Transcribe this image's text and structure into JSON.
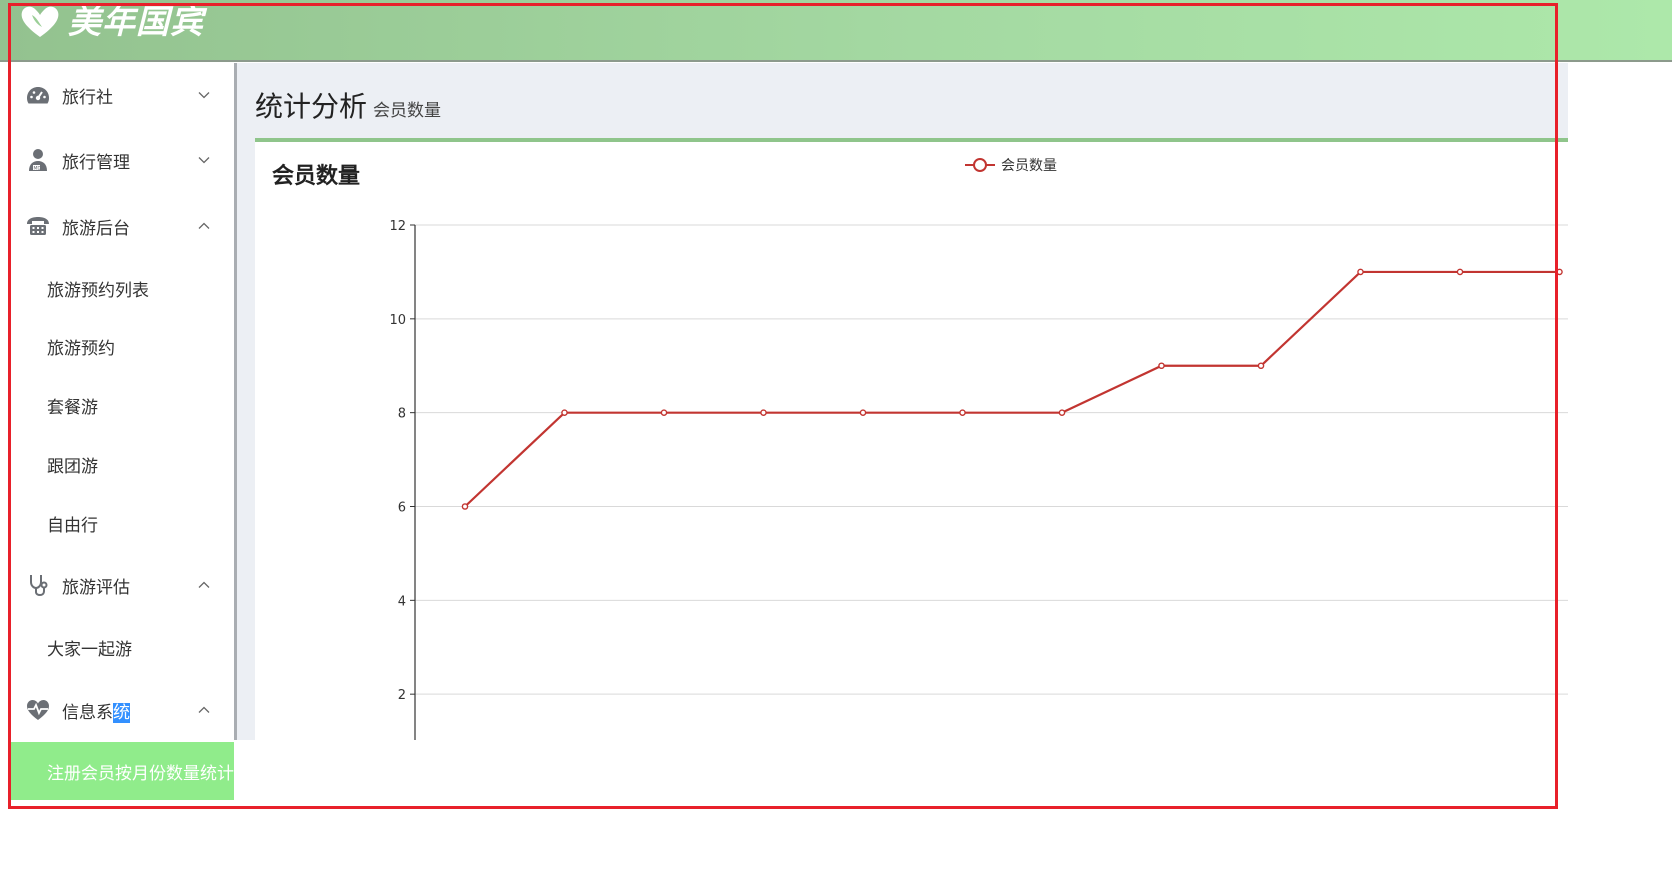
{
  "header": {
    "logo_text": "美年国宾",
    "logo_icon": "heart-leaf-logo",
    "colors": {
      "gradient_start": "#93c28f",
      "gradient_end": "#ade8aa"
    }
  },
  "sidebar": {
    "groups": [
      {
        "label": "旅行社",
        "icon": "dashboard-icon",
        "expanded": false
      },
      {
        "label": "旅行管理",
        "icon": "user-icon",
        "expanded": false
      },
      {
        "label": "旅游后台",
        "icon": "telephone-icon",
        "expanded": true
      },
      {
        "label": "旅游评估",
        "icon": "stethoscope-icon",
        "expanded": true
      },
      {
        "label_before_selection": "信息系",
        "label_selected": "统",
        "icon": "heartbeat-icon",
        "expanded": true
      }
    ],
    "backend_items": [
      "旅游预约列表",
      "旅游预约",
      "套餐游",
      "跟团游",
      "自由行"
    ],
    "eval_items": [
      "大家一起游"
    ],
    "info_items": [
      "注册会员按月份数量统计"
    ],
    "active_color": "#90ec8b"
  },
  "main": {
    "title": "统计分析",
    "subtitle": "会员数量"
  },
  "card": {
    "title": "会员数量"
  },
  "chart_data": {
    "type": "line",
    "title": "会员数量",
    "legend": {
      "entries": [
        "会员数量"
      ],
      "placement": "top-center"
    },
    "y_ticks": [
      "2",
      "4",
      "6",
      "8",
      "10",
      "12"
    ],
    "ylim": [
      0,
      12
    ],
    "grid": true,
    "series": [
      {
        "name": "会员数量",
        "color": "#c23531",
        "values": [
          6,
          8,
          8,
          8,
          8,
          8,
          8,
          9,
          9,
          11,
          11,
          11
        ]
      }
    ]
  }
}
